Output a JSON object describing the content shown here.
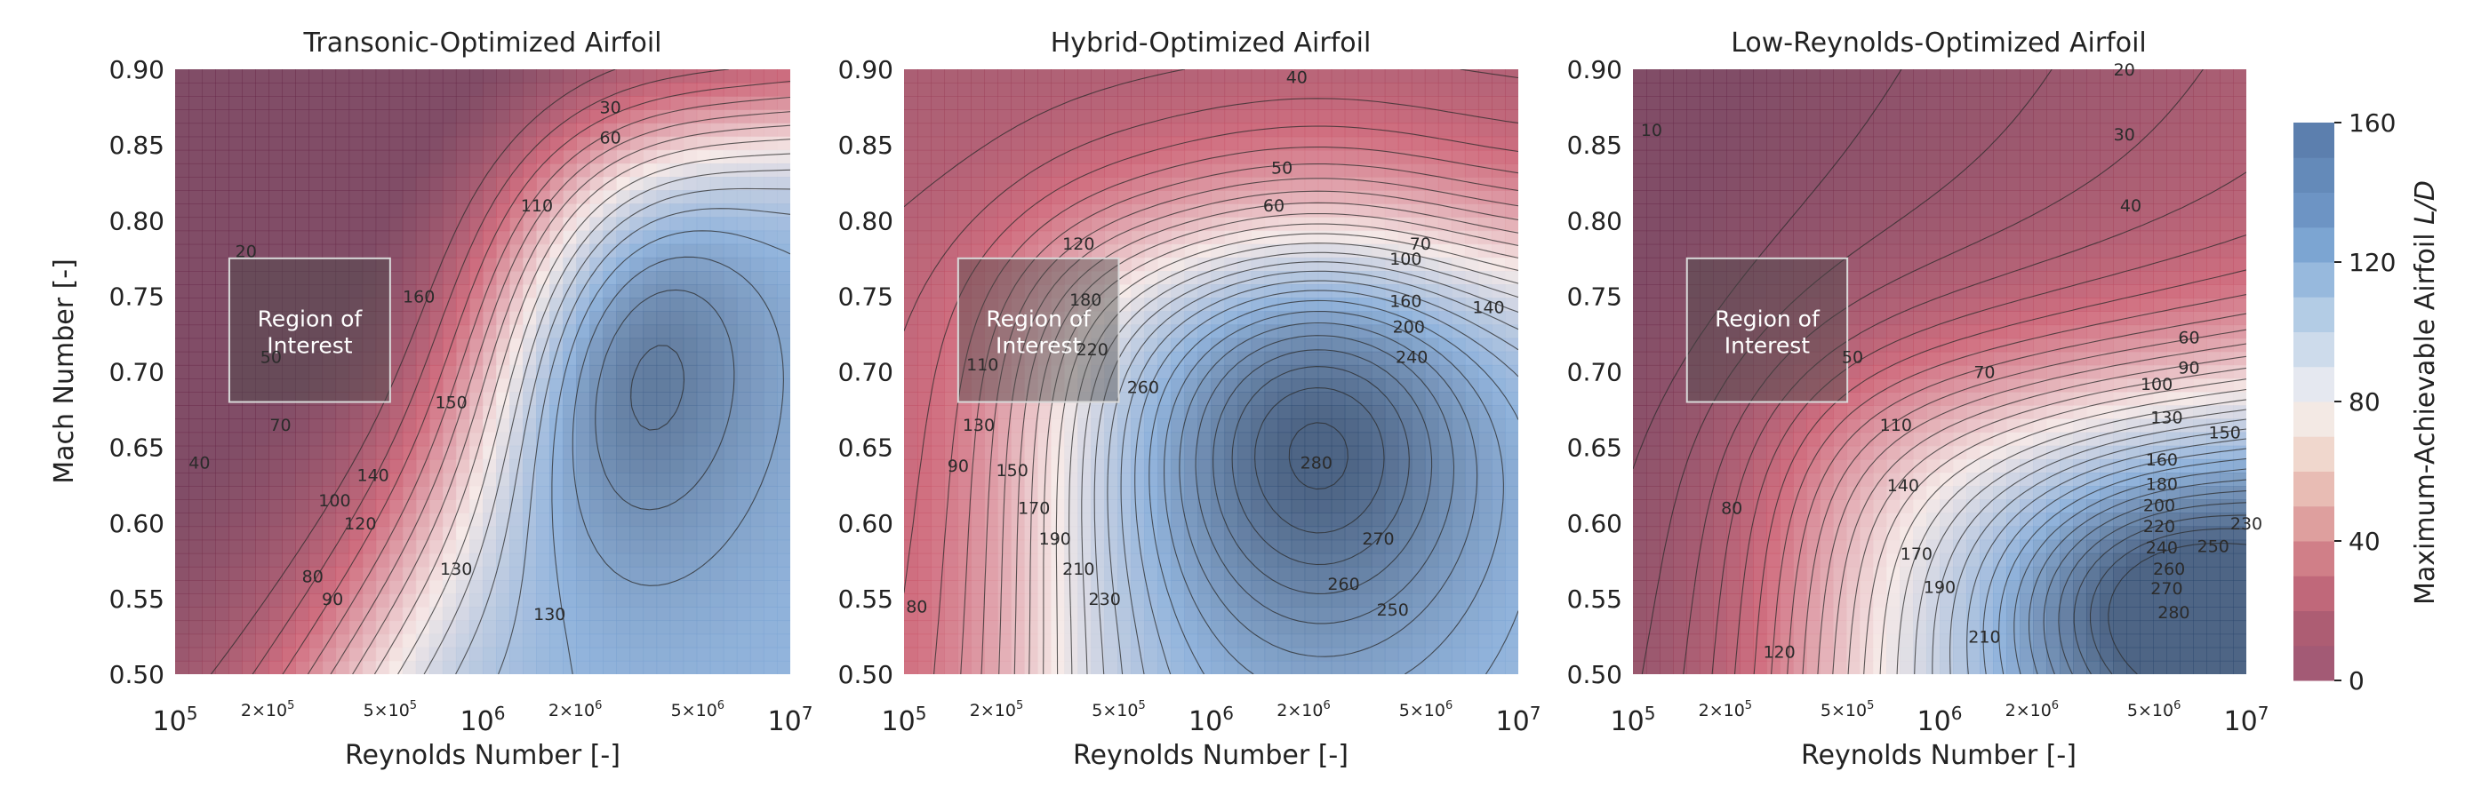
{
  "chart_data": [
    {
      "type": "contour",
      "title": "Transonic-Optimized Airfoil",
      "xlabel": "Reynolds Number [-]",
      "ylabel": "Mach Number [-]",
      "xscale": "log",
      "xlim": [
        100000,
        10000000
      ],
      "ylim": [
        0.5,
        0.9
      ],
      "x_tick_labels": [
        "10^5",
        "2×10^5",
        "5×10^5",
        "10^6",
        "2×10^6",
        "5×10^6",
        "10^7"
      ],
      "y_tick_labels": [
        "0.50",
        "0.55",
        "0.60",
        "0.65",
        "0.70",
        "0.75",
        "0.80",
        "0.85",
        "0.90"
      ],
      "region": {
        "label_line1": "Region of",
        "label_line2": "Interest",
        "re_range": [
          150000,
          500000
        ],
        "mach_range": [
          0.68,
          0.775
        ]
      },
      "contour_levels": [
        20,
        30,
        40,
        50,
        60,
        70,
        80,
        90,
        100,
        110,
        120,
        130,
        140,
        150,
        160
      ],
      "contour_labels": [
        {
          "text": "30",
          "re": 2600000,
          "mach": 0.875
        },
        {
          "text": "60",
          "re": 2600000,
          "mach": 0.855
        },
        {
          "text": "110",
          "re": 1500000,
          "mach": 0.81
        },
        {
          "text": "20",
          "re": 170000,
          "mach": 0.78
        },
        {
          "text": "50",
          "re": 205000,
          "mach": 0.71
        },
        {
          "text": "70",
          "re": 220000,
          "mach": 0.665
        },
        {
          "text": "40",
          "re": 120000,
          "mach": 0.64
        },
        {
          "text": "160",
          "re": 620000,
          "mach": 0.75
        },
        {
          "text": "150",
          "re": 790000,
          "mach": 0.68
        },
        {
          "text": "140",
          "re": 440000,
          "mach": 0.632
        },
        {
          "text": "100",
          "re": 330000,
          "mach": 0.615
        },
        {
          "text": "120",
          "re": 400000,
          "mach": 0.6
        },
        {
          "text": "80",
          "re": 280000,
          "mach": 0.565
        },
        {
          "text": "90",
          "re": 325000,
          "mach": 0.55
        },
        {
          "text": "130",
          "re": 820000,
          "mach": 0.57
        },
        {
          "text": "130",
          "re": 1650000,
          "mach": 0.54
        }
      ]
    },
    {
      "type": "contour",
      "title": "Hybrid-Optimized Airfoil",
      "xlabel": "Reynolds Number [-]",
      "ylabel": "",
      "xscale": "log",
      "xlim": [
        100000,
        10000000
      ],
      "ylim": [
        0.5,
        0.9
      ],
      "x_tick_labels": [
        "10^5",
        "2×10^5",
        "5×10^5",
        "10^6",
        "2×10^6",
        "5×10^6",
        "10^7"
      ],
      "y_tick_labels": [
        "0.50",
        "0.55",
        "0.60",
        "0.65",
        "0.70",
        "0.75",
        "0.80",
        "0.85",
        "0.90"
      ],
      "region": {
        "label_line1": "Region of",
        "label_line2": "Interest",
        "re_range": [
          150000,
          500000
        ],
        "mach_range": [
          0.68,
          0.775
        ]
      },
      "contour_levels": [
        40,
        50,
        60,
        70,
        80,
        90,
        100,
        110,
        120,
        130,
        140,
        150,
        160,
        170,
        180,
        190,
        200,
        210,
        220,
        230,
        240,
        250,
        260,
        270,
        280
      ],
      "contour_labels": [
        {
          "text": "40",
          "re": 1900000,
          "mach": 0.895
        },
        {
          "text": "50",
          "re": 1700000,
          "mach": 0.835
        },
        {
          "text": "60",
          "re": 1600000,
          "mach": 0.81
        },
        {
          "text": "70",
          "re": 4800000,
          "mach": 0.785
        },
        {
          "text": "120",
          "re": 370000,
          "mach": 0.785
        },
        {
          "text": "100",
          "re": 4300000,
          "mach": 0.775
        },
        {
          "text": "180",
          "re": 390000,
          "mach": 0.748
        },
        {
          "text": "160",
          "re": 4300000,
          "mach": 0.747
        },
        {
          "text": "140",
          "re": 8000000,
          "mach": 0.743
        },
        {
          "text": "200",
          "re": 4400000,
          "mach": 0.73
        },
        {
          "text": "220",
          "re": 410000,
          "mach": 0.715
        },
        {
          "text": "240",
          "re": 4500000,
          "mach": 0.71
        },
        {
          "text": "110",
          "re": 180000,
          "mach": 0.705
        },
        {
          "text": "260",
          "re": 600000,
          "mach": 0.69
        },
        {
          "text": "130",
          "re": 175000,
          "mach": 0.665
        },
        {
          "text": "280",
          "re": 2200000,
          "mach": 0.64
        },
        {
          "text": "90",
          "re": 150000,
          "mach": 0.638
        },
        {
          "text": "150",
          "re": 225000,
          "mach": 0.635
        },
        {
          "text": "170",
          "re": 265000,
          "mach": 0.61
        },
        {
          "text": "190",
          "re": 310000,
          "mach": 0.59
        },
        {
          "text": "270",
          "re": 3500000,
          "mach": 0.59
        },
        {
          "text": "210",
          "re": 370000,
          "mach": 0.57
        },
        {
          "text": "230",
          "re": 450000,
          "mach": 0.55
        },
        {
          "text": "260",
          "re": 2700000,
          "mach": 0.56
        },
        {
          "text": "80",
          "re": 110000,
          "mach": 0.545
        },
        {
          "text": "250",
          "re": 3900000,
          "mach": 0.543
        }
      ]
    },
    {
      "type": "contour",
      "title": "Low-Reynolds-Optimized Airfoil",
      "xlabel": "Reynolds Number [-]",
      "ylabel": "",
      "xscale": "log",
      "xlim": [
        100000,
        10000000
      ],
      "ylim": [
        0.5,
        0.9
      ],
      "x_tick_labels": [
        "10^5",
        "2×10^5",
        "5×10^5",
        "10^6",
        "2×10^6",
        "5×10^6",
        "10^7"
      ],
      "y_tick_labels": [
        "0.50",
        "0.55",
        "0.60",
        "0.65",
        "0.70",
        "0.75",
        "0.80",
        "0.85",
        "0.90"
      ],
      "region": {
        "label_line1": "Region of",
        "label_line2": "Interest",
        "re_range": [
          150000,
          500000
        ],
        "mach_range": [
          0.68,
          0.775
        ]
      },
      "contour_levels": [
        10,
        20,
        30,
        40,
        50,
        60,
        70,
        80,
        90,
        100,
        110,
        120,
        130,
        140,
        150,
        160,
        170,
        180,
        190,
        200,
        210,
        220,
        230,
        240,
        250,
        260,
        270,
        280
      ],
      "contour_labels": [
        {
          "text": "10",
          "re": 115000,
          "mach": 0.86
        },
        {
          "text": "20",
          "re": 4000000,
          "mach": 0.9
        },
        {
          "text": "30",
          "re": 4000000,
          "mach": 0.857
        },
        {
          "text": "40",
          "re": 4200000,
          "mach": 0.81
        },
        {
          "text": "50",
          "re": 520000,
          "mach": 0.71
        },
        {
          "text": "60",
          "re": 6500000,
          "mach": 0.723
        },
        {
          "text": "70",
          "re": 1400000,
          "mach": 0.7
        },
        {
          "text": "90",
          "re": 6500000,
          "mach": 0.703
        },
        {
          "text": "100",
          "re": 5100000,
          "mach": 0.692
        },
        {
          "text": "110",
          "re": 720000,
          "mach": 0.665
        },
        {
          "text": "130",
          "re": 5500000,
          "mach": 0.67
        },
        {
          "text": "150",
          "re": 8500000,
          "mach": 0.66
        },
        {
          "text": "160",
          "re": 5300000,
          "mach": 0.642
        },
        {
          "text": "140",
          "re": 760000,
          "mach": 0.625
        },
        {
          "text": "180",
          "re": 5300000,
          "mach": 0.626
        },
        {
          "text": "200",
          "re": 5200000,
          "mach": 0.612
        },
        {
          "text": "80",
          "re": 210000,
          "mach": 0.61
        },
        {
          "text": "220",
          "re": 5200000,
          "mach": 0.598
        },
        {
          "text": "240",
          "re": 5300000,
          "mach": 0.584
        },
        {
          "text": "250",
          "re": 7800000,
          "mach": 0.585
        },
        {
          "text": "230",
          "re": 10000000,
          "mach": 0.6
        },
        {
          "text": "170",
          "re": 840000,
          "mach": 0.58
        },
        {
          "text": "260",
          "re": 5600000,
          "mach": 0.57
        },
        {
          "text": "270",
          "re": 5500000,
          "mach": 0.557
        },
        {
          "text": "190",
          "re": 1000000,
          "mach": 0.558
        },
        {
          "text": "280",
          "re": 5800000,
          "mach": 0.541
        },
        {
          "text": "210",
          "re": 1400000,
          "mach": 0.525
        },
        {
          "text": "120",
          "re": 300000,
          "mach": 0.515
        }
      ]
    }
  ],
  "colorbar": {
    "label_text": "Maximum-Achievable Airfoil ",
    "label_italic": "L/D",
    "range": [
      0,
      160
    ],
    "ticks": [
      "0",
      "40",
      "80",
      "120",
      "160"
    ],
    "bin_colors": [
      "#a35a75",
      "#ad5d73",
      "#c0687a",
      "#d07f88",
      "#de9f9e",
      "#e8bcb4",
      "#f0d7cd",
      "#f3e9e4",
      "#e5e8f0",
      "#cddbeb",
      "#b3cce5",
      "#97b9dd",
      "#7ca5d2",
      "#6d94c4",
      "#648ab9",
      "#5c7fae"
    ]
  },
  "colormap": {
    "low": "#6b2e4c",
    "mid_low": "#c8566a",
    "mid": "#f4e6e4",
    "mid_high": "#7fa7d6",
    "high": "#2f4a70"
  }
}
